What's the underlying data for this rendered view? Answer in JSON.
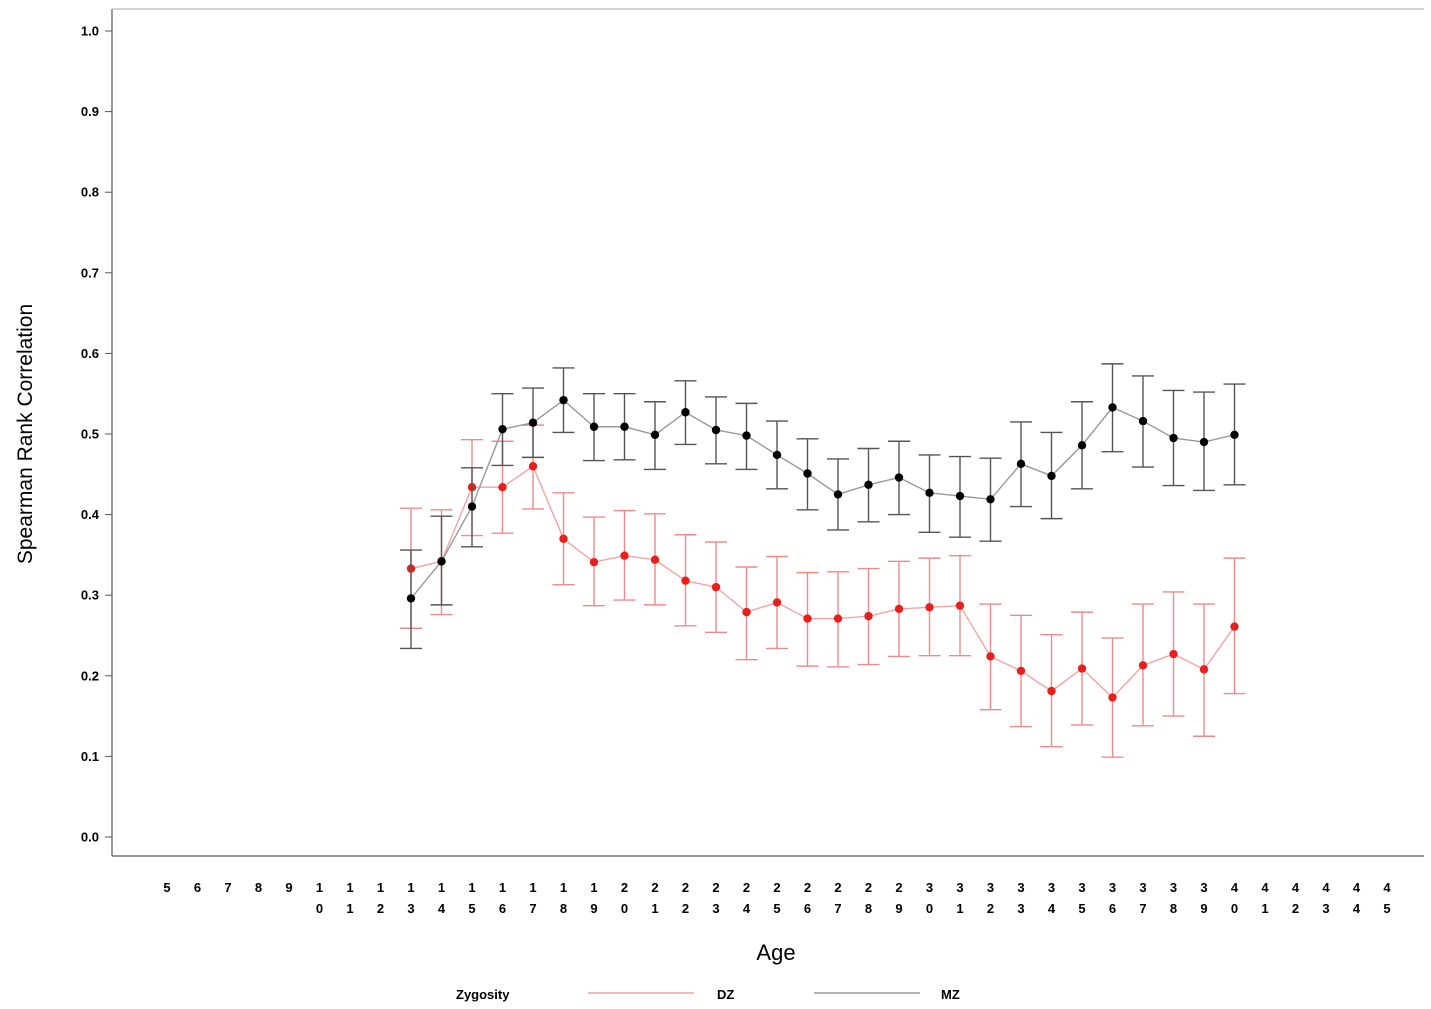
{
  "chart_data": {
    "type": "line",
    "title": "",
    "xlabel": "Age",
    "ylabel": "Spearman Rank Correlation",
    "ylim": [
      0.0,
      1.0
    ],
    "yticks": [
      "0.0",
      "0.1",
      "0.2",
      "0.3",
      "0.4",
      "0.5",
      "0.6",
      "0.7",
      "0.8",
      "0.9",
      "1.0"
    ],
    "x_categories": [
      5,
      6,
      7,
      8,
      9,
      10,
      11,
      12,
      13,
      14,
      15,
      16,
      17,
      18,
      19,
      20,
      21,
      22,
      23,
      24,
      25,
      26,
      27,
      28,
      29,
      30,
      31,
      32,
      33,
      34,
      35,
      36,
      37,
      38,
      39,
      40,
      41,
      42,
      43,
      44,
      45
    ],
    "grid": false,
    "error_bars": true,
    "legend": {
      "title": "Zygosity",
      "placement": "bottom"
    },
    "series": [
      {
        "name": "DZ",
        "color": "#e8201c",
        "bar_color": "#f08a8a",
        "line_color": "#f4a3a3",
        "x": [
          13,
          14,
          15,
          16,
          17,
          18,
          19,
          20,
          21,
          22,
          23,
          24,
          25,
          26,
          27,
          28,
          29,
          30,
          31,
          32,
          33,
          34,
          35,
          36,
          37,
          38,
          39,
          40
        ],
        "values": [
          0.333,
          0.342,
          0.434,
          0.434,
          0.46,
          0.37,
          0.341,
          0.349,
          0.344,
          0.318,
          0.31,
          0.279,
          0.291,
          0.271,
          0.271,
          0.274,
          0.283,
          0.285,
          0.287,
          0.224,
          0.206,
          0.181,
          0.209,
          0.173,
          0.213,
          0.227,
          0.208,
          0.261
        ],
        "lower": [
          0.259,
          0.276,
          0.374,
          0.377,
          0.407,
          0.313,
          0.287,
          0.294,
          0.288,
          0.262,
          0.254,
          0.22,
          0.234,
          0.212,
          0.211,
          0.214,
          0.224,
          0.225,
          0.225,
          0.158,
          0.137,
          0.112,
          0.139,
          0.099,
          0.138,
          0.15,
          0.125,
          0.178
        ],
        "upper": [
          0.408,
          0.406,
          0.493,
          0.491,
          0.511,
          0.427,
          0.397,
          0.405,
          0.401,
          0.375,
          0.366,
          0.335,
          0.348,
          0.328,
          0.329,
          0.333,
          0.342,
          0.346,
          0.349,
          0.289,
          0.275,
          0.251,
          0.279,
          0.247,
          0.289,
          0.304,
          0.289,
          0.346
        ]
      },
      {
        "name": "MZ",
        "color": "#000000",
        "bar_color": "#555555",
        "line_color": "#999999",
        "x": [
          13,
          14,
          15,
          16,
          17,
          18,
          19,
          20,
          21,
          22,
          23,
          24,
          25,
          26,
          27,
          28,
          29,
          30,
          31,
          32,
          33,
          34,
          35,
          36,
          37,
          38,
          39,
          40
        ],
        "values": [
          0.296,
          0.342,
          0.41,
          0.506,
          0.514,
          0.542,
          0.509,
          0.509,
          0.499,
          0.527,
          0.505,
          0.498,
          0.474,
          0.451,
          0.425,
          0.437,
          0.446,
          0.427,
          0.423,
          0.419,
          0.463,
          0.448,
          0.486,
          0.533,
          0.516,
          0.495,
          0.49,
          0.499
        ],
        "lower": [
          0.234,
          0.288,
          0.36,
          0.461,
          0.471,
          0.502,
          0.467,
          0.468,
          0.456,
          0.487,
          0.463,
          0.456,
          0.432,
          0.406,
          0.381,
          0.391,
          0.4,
          0.378,
          0.372,
          0.367,
          0.41,
          0.395,
          0.432,
          0.478,
          0.459,
          0.436,
          0.43,
          0.437
        ],
        "upper": [
          0.356,
          0.398,
          0.458,
          0.55,
          0.557,
          0.582,
          0.55,
          0.55,
          0.54,
          0.566,
          0.546,
          0.538,
          0.516,
          0.494,
          0.469,
          0.482,
          0.491,
          0.474,
          0.472,
          0.47,
          0.515,
          0.502,
          0.54,
          0.587,
          0.572,
          0.554,
          0.552,
          0.562
        ]
      }
    ]
  }
}
